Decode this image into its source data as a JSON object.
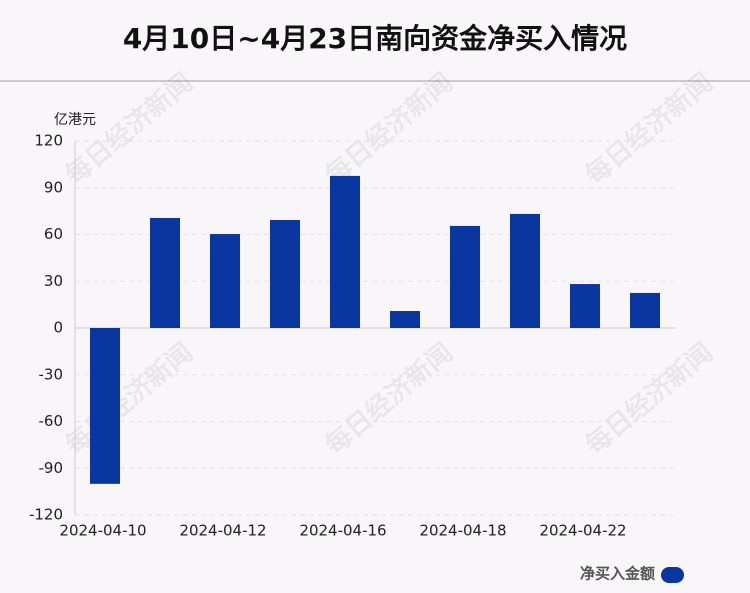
{
  "chart_data": {
    "type": "bar",
    "title": "4月10日~4月23日南向资金净买入情况",
    "y_axis_label": "亿港元",
    "watermark": "每日经济新闻",
    "categories": [
      "2024-04-10",
      null,
      "2024-04-12",
      null,
      "2024-04-16",
      null,
      "2024-04-18",
      null,
      "2024-04-22",
      null
    ],
    "series": [
      {
        "name": "净买入金额",
        "color": "#0a36a0",
        "values": [
          -100,
          70.6,
          60.3,
          69.3,
          97.6,
          10.9,
          65.5,
          73.2,
          28.2,
          22.5
        ]
      }
    ],
    "ylim": [
      -120,
      120
    ],
    "yticks": [
      -120,
      -90,
      -60,
      -30,
      0,
      30,
      60,
      90,
      120
    ],
    "grid": true,
    "legend": "bottom-right"
  }
}
